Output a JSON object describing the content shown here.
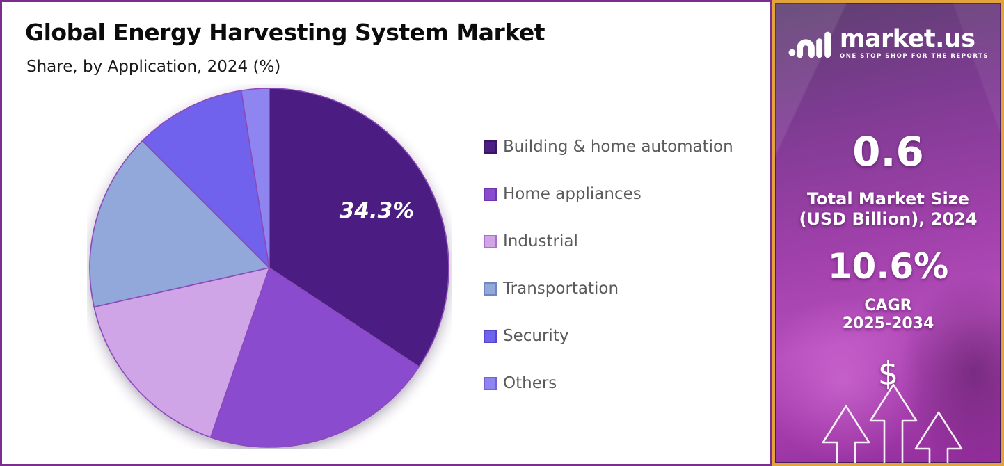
{
  "chart": {
    "title": "Global Energy Harvesting System Market",
    "subtitle": "Share, by Application, 2024 (%)"
  },
  "chart_data": {
    "type": "pie",
    "title": "Global Energy Harvesting System Market",
    "subtitle": "Share, by Application, 2024 (%)",
    "unit": "%",
    "categories": [
      "Building & home automation",
      "Home appliances",
      "Industrial",
      "Transportation",
      "Security",
      "Others"
    ],
    "values": [
      34.3,
      21.0,
      16.2,
      16.0,
      10.0,
      2.5
    ],
    "colors": [
      "#4C1D82",
      "#8B4BCF",
      "#CFA5E8",
      "#92A7DA",
      "#6F62EC",
      "#8F85F0"
    ],
    "swatch_border_colors": [
      "#3A1566",
      "#6F35AB",
      "#A96FCB",
      "#6F86BE",
      "#5346C8",
      "#6F63D6"
    ],
    "labeled_slice": {
      "index": 0,
      "label": "34.3%"
    },
    "start_angle": "top, clockwise",
    "legend_position": "right",
    "grid": false
  },
  "sidebar": {
    "brand": {
      "name": "market.us",
      "tagline": "ONE STOP SHOP FOR THE REPORTS"
    },
    "market_size": {
      "value": "0.6",
      "label": "Total Market Size",
      "sublabel": "(USD Billion), 2024"
    },
    "cagr": {
      "value": "10.6%",
      "label": "CAGR",
      "sublabel": "2025-2034"
    },
    "dollar_symbol": "$"
  },
  "colors": {
    "chart_panel_border": "#7B2E8E",
    "sidebar_border_gold": "#E2A23C",
    "sidebar_inner_border": "#4A1A5E",
    "sidebar_bg_top": "#5D4070",
    "sidebar_bg_mid": "#9F40AA",
    "sidebar_bg_bottom": "#922C9B",
    "slice_stroke": "#8A4BB8",
    "legend_text": "#5A5A5A",
    "title_text": "#0B0B0B"
  }
}
